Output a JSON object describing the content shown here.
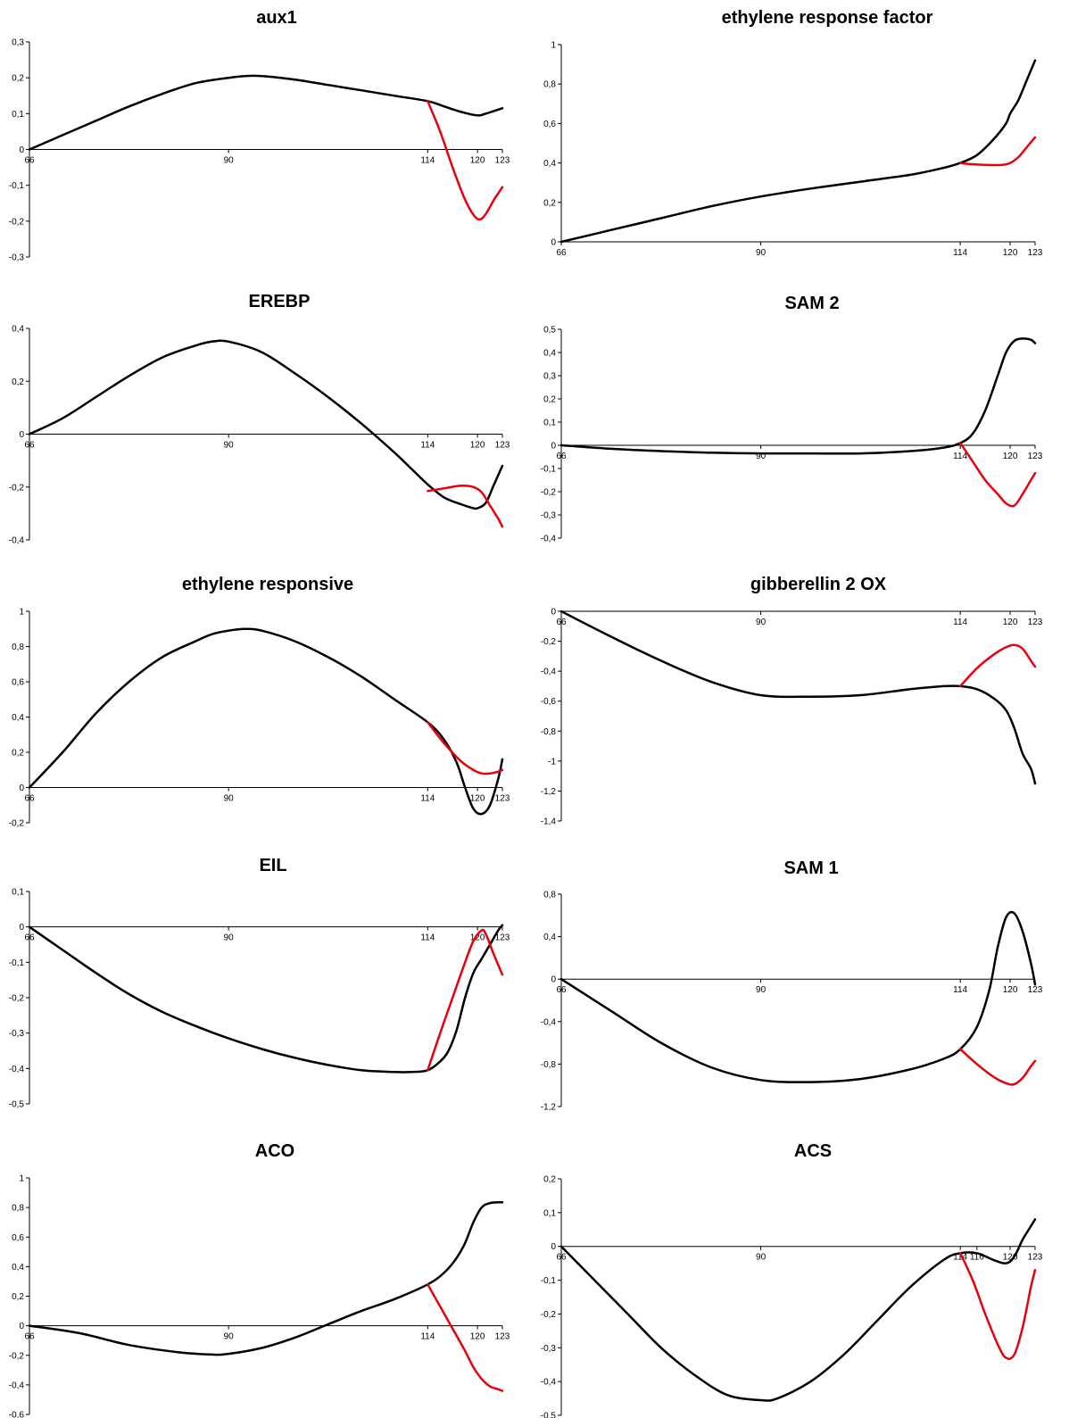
{
  "colors": {
    "series_black": "#000000",
    "series_red": "#e8000b"
  },
  "chart_data": [
    {
      "type": "line",
      "title": "aux1",
      "xticks": [
        66,
        90,
        114,
        120,
        123
      ],
      "xlim": [
        66,
        123
      ],
      "yticks": [
        "0,3",
        "0,2",
        "0,1",
        "0",
        "-0,1",
        "-0,2",
        "-0,3"
      ],
      "ytick_values": [
        0.3,
        0.2,
        0.1,
        0,
        -0.1,
        -0.2,
        -0.3
      ],
      "ylim": [
        -0.3,
        0.3
      ],
      "series": [
        {
          "color": "#000000",
          "x": [
            66,
            70,
            74,
            78,
            82,
            86,
            90,
            92,
            94,
            98,
            102,
            106,
            110,
            114,
            116,
            118,
            120,
            121,
            123
          ],
          "y": [
            0,
            0.04,
            0.08,
            0.12,
            0.155,
            0.185,
            0.2,
            0.205,
            0.205,
            0.195,
            0.18,
            0.165,
            0.15,
            0.135,
            0.12,
            0.105,
            0.095,
            0.1,
            0.115
          ]
        },
        {
          "color": "#e8000b",
          "x": [
            114,
            115.5,
            117,
            118.5,
            119.6,
            120.3,
            121,
            122,
            123
          ],
          "y": [
            0.135,
            0.05,
            -0.05,
            -0.14,
            -0.185,
            -0.195,
            -0.18,
            -0.14,
            -0.105
          ]
        }
      ]
    },
    {
      "type": "line",
      "title": "ethylene response factor",
      "xticks": [
        66,
        90,
        114,
        120,
        123
      ],
      "xlim": [
        66,
        123
      ],
      "yticks": [
        "1",
        "0,8",
        "0,6",
        "0,4",
        "0,2",
        "0"
      ],
      "ytick_values": [
        1,
        0.8,
        0.6,
        0.4,
        0.2,
        0
      ],
      "ylim": [
        0,
        1
      ],
      "series": [
        {
          "color": "#000000",
          "x": [
            66,
            72,
            78,
            84,
            90,
            96,
            102,
            108,
            112,
            114,
            116,
            118,
            119.5,
            120,
            121,
            122,
            123
          ],
          "y": [
            0,
            0.06,
            0.12,
            0.18,
            0.23,
            0.27,
            0.305,
            0.34,
            0.375,
            0.4,
            0.44,
            0.52,
            0.6,
            0.65,
            0.72,
            0.82,
            0.92
          ]
        },
        {
          "color": "#e8000b",
          "x": [
            114,
            115,
            117,
            119,
            120,
            121,
            122,
            123
          ],
          "y": [
            0.4,
            0.395,
            0.39,
            0.39,
            0.4,
            0.43,
            0.48,
            0.53
          ]
        }
      ]
    },
    {
      "type": "line",
      "title": "EREBP",
      "xticks": [
        66,
        90,
        114,
        120,
        123
      ],
      "xlim": [
        66,
        123
      ],
      "yticks": [
        "0,4",
        "0,2",
        "0",
        "-0,2",
        "-0,4"
      ],
      "ytick_values": [
        0.4,
        0.2,
        0,
        -0.2,
        -0.4
      ],
      "ylim": [
        -0.4,
        0.4
      ],
      "series": [
        {
          "color": "#000000",
          "x": [
            66,
            70,
            74,
            78,
            82,
            86,
            88,
            90,
            94,
            98,
            102,
            106,
            110,
            112,
            114,
            116,
            118,
            119.5,
            120,
            121,
            122,
            123
          ],
          "y": [
            0,
            0.06,
            0.14,
            0.22,
            0.29,
            0.335,
            0.35,
            0.35,
            0.31,
            0.23,
            0.14,
            0.04,
            -0.07,
            -0.13,
            -0.19,
            -0.24,
            -0.265,
            -0.28,
            -0.28,
            -0.26,
            -0.19,
            -0.12
          ]
        },
        {
          "color": "#e8000b",
          "x": [
            114,
            116,
            118,
            119.5,
            120.5,
            121.5,
            122.5,
            123
          ],
          "y": [
            -0.215,
            -0.205,
            -0.195,
            -0.2,
            -0.22,
            -0.27,
            -0.32,
            -0.35
          ]
        }
      ]
    },
    {
      "type": "line",
      "title": "SAM 2",
      "xticks": [
        66,
        90,
        114,
        120,
        123
      ],
      "xlim": [
        66,
        123
      ],
      "yticks": [
        "0,5",
        "0,4",
        "0,3",
        "0,2",
        "0,1",
        "0",
        "-0,1",
        "-0,2",
        "-0,3",
        "-0,4"
      ],
      "ytick_values": [
        0.5,
        0.4,
        0.3,
        0.2,
        0.1,
        0,
        -0.1,
        -0.2,
        -0.3,
        -0.4
      ],
      "ylim": [
        -0.4,
        0.5
      ],
      "series": [
        {
          "color": "#000000",
          "x": [
            66,
            72,
            78,
            84,
            90,
            96,
            102,
            108,
            112,
            114,
            115.5,
            117,
            118.5,
            119.5,
            120.5,
            121.5,
            122.5,
            123
          ],
          "y": [
            0,
            -0.015,
            -0.025,
            -0.032,
            -0.035,
            -0.035,
            -0.035,
            -0.025,
            -0.01,
            0.01,
            0.05,
            0.15,
            0.3,
            0.4,
            0.45,
            0.46,
            0.455,
            0.44
          ]
        },
        {
          "color": "#e8000b",
          "x": [
            114,
            115.5,
            117,
            118.5,
            119.5,
            120.5,
            121.5,
            122.5,
            123
          ],
          "y": [
            0.01,
            -0.07,
            -0.15,
            -0.21,
            -0.25,
            -0.26,
            -0.21,
            -0.15,
            -0.12
          ]
        }
      ]
    },
    {
      "type": "line",
      "title": "ethylene responsive",
      "xticks": [
        66,
        90,
        114,
        120,
        123
      ],
      "xlim": [
        66,
        123
      ],
      "yticks": [
        "1",
        "0,8",
        "0,6",
        "0,4",
        "0,2",
        "0",
        "-0,2"
      ],
      "ytick_values": [
        1,
        0.8,
        0.6,
        0.4,
        0.2,
        0,
        -0.2
      ],
      "ylim": [
        -0.2,
        1
      ],
      "series": [
        {
          "color": "#000000",
          "x": [
            66,
            70,
            74,
            78,
            82,
            86,
            88,
            90,
            92,
            94,
            98,
            102,
            106,
            110,
            114,
            116,
            117.5,
            118.5,
            119.5,
            120.5,
            121.5,
            122.5,
            123
          ],
          "y": [
            0,
            0.2,
            0.42,
            0.6,
            0.74,
            0.83,
            0.87,
            0.89,
            0.9,
            0.89,
            0.83,
            0.74,
            0.63,
            0.5,
            0.37,
            0.27,
            0.14,
            0,
            -0.12,
            -0.15,
            -0.1,
            0.05,
            0.16
          ]
        },
        {
          "color": "#e8000b",
          "x": [
            114,
            116,
            118,
            119.5,
            120.5,
            121.5,
            122.5,
            123
          ],
          "y": [
            0.37,
            0.25,
            0.15,
            0.1,
            0.08,
            0.08,
            0.09,
            0.1
          ]
        }
      ]
    },
    {
      "type": "line",
      "title": "gibberellin 2 OX",
      "xticks": [
        66,
        90,
        114,
        120,
        123
      ],
      "xlim": [
        66,
        123
      ],
      "yticks": [
        "0",
        "-0,2",
        "-0,4",
        "-0,6",
        "-0,8",
        "-1",
        "-1,2",
        "-1,4"
      ],
      "ytick_values": [
        0,
        -0.2,
        -0.4,
        -0.6,
        -0.8,
        -1,
        -1.2,
        -1.4
      ],
      "ylim": [
        -1.4,
        0
      ],
      "series": [
        {
          "color": "#000000",
          "x": [
            66,
            72,
            78,
            84,
            90,
            96,
            102,
            108,
            112,
            114,
            116,
            118,
            119.5,
            120.5,
            121.5,
            122.5,
            123
          ],
          "y": [
            0,
            -0.17,
            -0.33,
            -0.47,
            -0.56,
            -0.57,
            -0.56,
            -0.52,
            -0.5,
            -0.5,
            -0.52,
            -0.58,
            -0.66,
            -0.78,
            -0.95,
            -1.05,
            -1.15
          ]
        },
        {
          "color": "#e8000b",
          "x": [
            114,
            116,
            118,
            119.5,
            120.5,
            121.5,
            122.5,
            123
          ],
          "y": [
            -0.5,
            -0.38,
            -0.29,
            -0.24,
            -0.225,
            -0.25,
            -0.33,
            -0.37
          ]
        }
      ]
    },
    {
      "type": "line",
      "title": "EIL",
      "xticks": [
        66,
        90,
        114,
        120,
        123
      ],
      "xlim": [
        66,
        123
      ],
      "yticks": [
        "0,1",
        "0",
        "-0,1",
        "-0,2",
        "-0,3",
        "-0,4",
        "-0,5"
      ],
      "ytick_values": [
        0.1,
        0,
        -0.1,
        -0.2,
        -0.3,
        -0.4,
        -0.5
      ],
      "ylim": [
        -0.5,
        0.1
      ],
      "series": [
        {
          "color": "#000000",
          "x": [
            66,
            70,
            74,
            78,
            82,
            86,
            90,
            94,
            98,
            102,
            106,
            110,
            112,
            114,
            115.5,
            116.5,
            117.5,
            118.5,
            119.5,
            120.5,
            121.5,
            122.5,
            123
          ],
          "y": [
            0,
            -0.065,
            -0.13,
            -0.19,
            -0.24,
            -0.28,
            -0.315,
            -0.345,
            -0.37,
            -0.39,
            -0.405,
            -0.41,
            -0.41,
            -0.405,
            -0.38,
            -0.35,
            -0.29,
            -0.2,
            -0.13,
            -0.09,
            -0.05,
            -0.01,
            0.005
          ]
        },
        {
          "color": "#e8000b",
          "x": [
            114,
            115.5,
            117,
            118.5,
            119.5,
            120.5,
            121,
            122,
            123
          ],
          "y": [
            -0.405,
            -0.3,
            -0.2,
            -0.1,
            -0.04,
            -0.01,
            -0.02,
            -0.08,
            -0.135
          ]
        }
      ]
    },
    {
      "type": "line",
      "title": "SAM 1",
      "xticks": [
        66,
        90,
        114,
        120,
        123
      ],
      "xlim": [
        66,
        123
      ],
      "yticks": [
        "0,8",
        "0,4",
        "0",
        "-0,4",
        "-0,8",
        "-1,2"
      ],
      "ytick_values": [
        0.8,
        0.4,
        0,
        -0.4,
        -0.8,
        -1.2
      ],
      "ylim": [
        -1.2,
        0.8
      ],
      "series": [
        {
          "color": "#000000",
          "x": [
            66,
            72,
            78,
            84,
            90,
            96,
            102,
            108,
            112,
            114,
            116,
            117.5,
            118.5,
            119.5,
            120.5,
            121.5,
            122.5,
            123
          ],
          "y": [
            0,
            -0.3,
            -0.6,
            -0.83,
            -0.95,
            -0.97,
            -0.94,
            -0.85,
            -0.75,
            -0.66,
            -0.45,
            -0.1,
            0.3,
            0.58,
            0.62,
            0.45,
            0.15,
            -0.05
          ]
        },
        {
          "color": "#e8000b",
          "x": [
            114,
            116,
            118,
            119.5,
            120.5,
            121.5,
            122.5,
            123
          ],
          "y": [
            -0.66,
            -0.8,
            -0.92,
            -0.98,
            -0.99,
            -0.93,
            -0.82,
            -0.77
          ]
        }
      ]
    },
    {
      "type": "line",
      "title": "ACO",
      "xticks": [
        66,
        90,
        114,
        120,
        123
      ],
      "xlim": [
        66,
        123
      ],
      "yticks": [
        "1",
        "0,8",
        "0,6",
        "0,4",
        "0,2",
        "0",
        "-0,2",
        "-0,4",
        "-0,6"
      ],
      "ytick_values": [
        1,
        0.8,
        0.6,
        0.4,
        0.2,
        0,
        -0.2,
        -0.4,
        -0.6
      ],
      "ylim": [
        -0.6,
        1
      ],
      "series": [
        {
          "color": "#000000",
          "x": [
            66,
            72,
            78,
            84,
            88,
            90,
            94,
            98,
            102,
            106,
            110,
            114,
            116,
            117.5,
            118.5,
            119.5,
            120.5,
            121.5,
            122.5,
            123
          ],
          "y": [
            0,
            -0.05,
            -0.13,
            -0.18,
            -0.195,
            -0.19,
            -0.15,
            -0.08,
            0.01,
            0.1,
            0.18,
            0.28,
            0.36,
            0.46,
            0.56,
            0.7,
            0.8,
            0.83,
            0.835,
            0.835
          ]
        },
        {
          "color": "#e8000b",
          "x": [
            114,
            115.5,
            117,
            118.5,
            119.5,
            120.5,
            121.5,
            122.5,
            123
          ],
          "y": [
            0.28,
            0.13,
            -0.02,
            -0.17,
            -0.28,
            -0.36,
            -0.41,
            -0.43,
            -0.44
          ]
        }
      ]
    },
    {
      "type": "line",
      "title": "ACS",
      "xticks": [
        66,
        90,
        114,
        116,
        120,
        123
      ],
      "xlim": [
        66,
        123
      ],
      "yticks": [
        "0,2",
        "0,1",
        "0",
        "-0,1",
        "-0,2",
        "-0,3",
        "-0,4",
        "-0,5"
      ],
      "ytick_values": [
        0.2,
        0.1,
        0,
        -0.1,
        -0.2,
        -0.3,
        -0.4,
        -0.5
      ],
      "ylim": [
        -0.5,
        0.2
      ],
      "series": [
        {
          "color": "#000000",
          "x": [
            66,
            70,
            74,
            78,
            82,
            86,
            90,
            92,
            96,
            100,
            104,
            108,
            112,
            114,
            116,
            118,
            119.5,
            120.5,
            121.5,
            122.5,
            123
          ],
          "y": [
            0,
            -0.1,
            -0.2,
            -0.3,
            -0.38,
            -0.44,
            -0.455,
            -0.45,
            -0.4,
            -0.32,
            -0.22,
            -0.12,
            -0.04,
            -0.02,
            -0.02,
            -0.04,
            -0.05,
            -0.03,
            0.02,
            0.06,
            0.08
          ]
        },
        {
          "color": "#e8000b",
          "x": [
            114,
            115.5,
            117,
            118.5,
            119.5,
            120.5,
            121.5,
            122.5,
            123
          ],
          "y": [
            -0.02,
            -0.1,
            -0.2,
            -0.29,
            -0.33,
            -0.32,
            -0.24,
            -0.12,
            -0.07
          ]
        }
      ]
    }
  ]
}
